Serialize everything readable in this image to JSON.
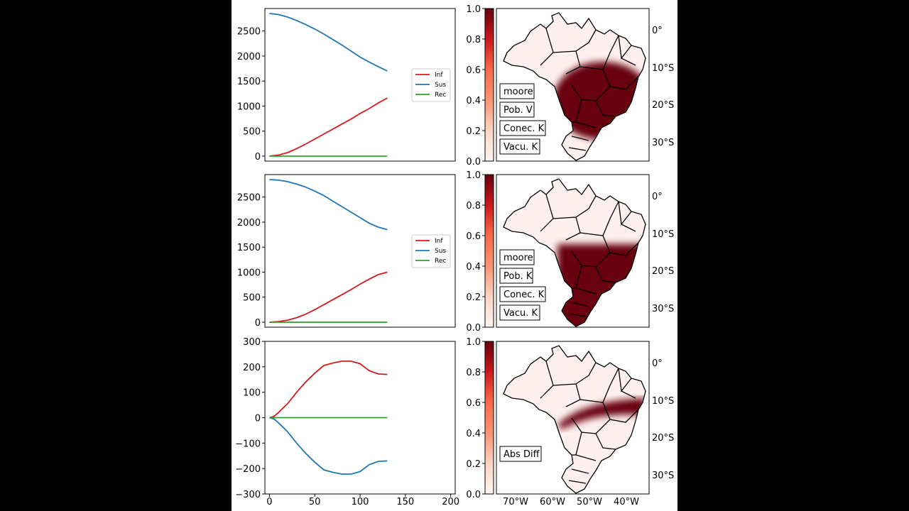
{
  "chart_data": [
    {
      "type": "line",
      "xlim": [
        -5,
        205
      ],
      "ylim": [
        -100,
        2950
      ],
      "yticks": [
        0,
        500,
        1000,
        1500,
        2000,
        2500
      ],
      "ytick_labels": [
        "0",
        "500",
        "1000",
        "1500",
        "2000",
        "2500"
      ],
      "legend_placement": "center-right",
      "series": [
        {
          "name": "Inf",
          "color": "#d7191c",
          "x": [
            0,
            10,
            20,
            30,
            40,
            50,
            60,
            70,
            80,
            90,
            100,
            110,
            120,
            130
          ],
          "values": [
            0,
            20,
            70,
            150,
            240,
            340,
            440,
            540,
            640,
            740,
            850,
            950,
            1060,
            1160
          ]
        },
        {
          "name": "Sus",
          "color": "#1f77b4",
          "x": [
            0,
            10,
            20,
            30,
            40,
            50,
            60,
            70,
            80,
            90,
            100,
            110,
            120,
            130
          ],
          "values": [
            2850,
            2830,
            2780,
            2710,
            2630,
            2540,
            2440,
            2330,
            2220,
            2100,
            1980,
            1880,
            1790,
            1700
          ]
        },
        {
          "name": "Rec",
          "color": "#2ca02c",
          "x": [
            0,
            130
          ],
          "values": [
            0,
            0
          ]
        }
      ]
    },
    {
      "type": "line",
      "xlim": [
        -5,
        205
      ],
      "ylim": [
        -100,
        2950
      ],
      "yticks": [
        0,
        500,
        1000,
        1500,
        2000,
        2500
      ],
      "ytick_labels": [
        "0",
        "500",
        "1000",
        "1500",
        "2000",
        "2500"
      ],
      "legend_placement": "center-right",
      "series": [
        {
          "name": "Inf",
          "color": "#d7191c",
          "x": [
            0,
            10,
            20,
            30,
            40,
            50,
            60,
            70,
            80,
            90,
            100,
            110,
            120,
            130
          ],
          "values": [
            0,
            10,
            40,
            90,
            160,
            250,
            350,
            450,
            550,
            650,
            760,
            860,
            950,
            1000
          ]
        },
        {
          "name": "Sus",
          "color": "#1f77b4",
          "x": [
            0,
            10,
            20,
            30,
            40,
            50,
            60,
            70,
            80,
            90,
            100,
            110,
            120,
            130
          ],
          "values": [
            2850,
            2840,
            2810,
            2760,
            2700,
            2620,
            2530,
            2420,
            2310,
            2200,
            2090,
            1980,
            1900,
            1850
          ]
        },
        {
          "name": "Rec",
          "color": "#2ca02c",
          "x": [
            0,
            130
          ],
          "values": [
            0,
            0
          ]
        }
      ]
    },
    {
      "type": "line",
      "xlim": [
        -5,
        205
      ],
      "ylim": [
        -300,
        300
      ],
      "yticks": [
        -300,
        -200,
        -100,
        0,
        100,
        200,
        300
      ],
      "ytick_labels": [
        "−300",
        "−200",
        "−100",
        "0",
        "100",
        "200",
        "300"
      ],
      "xticks": [
        0,
        50,
        100,
        150,
        200
      ],
      "xtick_labels": [
        "0",
        "50",
        "100",
        "150",
        "200"
      ],
      "series": [
        {
          "color": "#d7191c",
          "x": [
            0,
            5,
            10,
            20,
            30,
            40,
            50,
            60,
            70,
            80,
            90,
            100,
            110,
            120,
            130
          ],
          "values": [
            0,
            5,
            20,
            55,
            100,
            140,
            175,
            205,
            215,
            222,
            222,
            212,
            185,
            172,
            170
          ]
        },
        {
          "color": "#1f77b4",
          "x": [
            0,
            5,
            10,
            20,
            30,
            40,
            50,
            60,
            70,
            80,
            90,
            100,
            110,
            120,
            130
          ],
          "values": [
            0,
            -5,
            -20,
            -55,
            -100,
            -140,
            -175,
            -205,
            -215,
            -222,
            -222,
            -212,
            -185,
            -172,
            -170
          ]
        },
        {
          "color": "#2ca02c",
          "x": [
            0,
            130
          ],
          "values": [
            0,
            0
          ]
        }
      ]
    }
  ],
  "maps": [
    {
      "badges": [
        "moore",
        "Pob. V",
        "Conec. K",
        "Vacu. K"
      ]
    },
    {
      "badges": [
        "moore",
        "Pob. K",
        "Conec. K",
        "Vacu. K"
      ]
    },
    {
      "badges": [
        "Abs Diff"
      ]
    }
  ],
  "colorbar": {
    "colormap": "Reds",
    "ticks": [
      0.0,
      0.2,
      0.4,
      0.6,
      0.8,
      1.0
    ],
    "tick_labels": [
      "0.0",
      "0.2",
      "0.4",
      "0.6",
      "0.8",
      "1.0"
    ]
  },
  "map_lat_ticks": [
    "0°",
    "10°S",
    "20°S",
    "30°S"
  ],
  "map_lon_ticks": [
    "70°W",
    "60°W",
    "50°W",
    "40°W"
  ],
  "colors": {
    "map_fill": "#fff0f0",
    "heat_dark": "#67000d",
    "heat_mid": "#cb181d"
  }
}
